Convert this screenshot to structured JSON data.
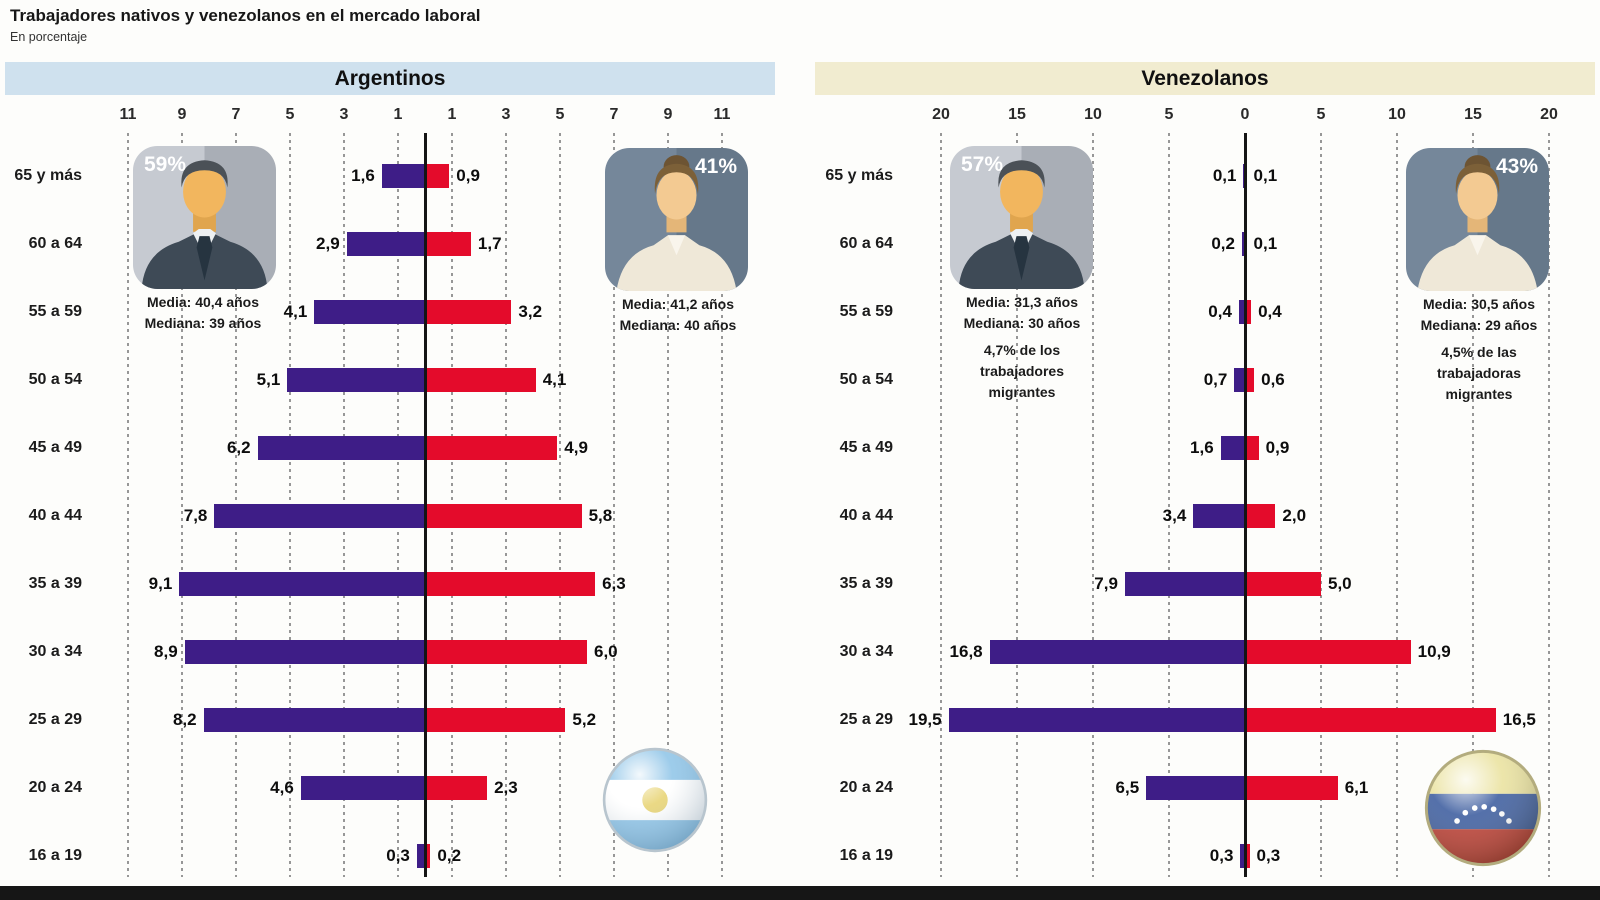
{
  "page": {
    "title": "Trabajadores nativos y venezolanos en el mercado laboral",
    "subtitle": "En porcentaje"
  },
  "colors": {
    "male_bar": "#3e1d87",
    "female_bar": "#e40b2b",
    "argentinos_band": "#cfe1ee",
    "venezolanos_band": "#f1ecd0",
    "axis_line": "#151515",
    "gridline": "#979797",
    "footer_bar": "#161616"
  },
  "icons": {
    "male_avatar": "male-avatar-icon",
    "female_avatar": "female-avatar-icon",
    "argentina_flag": "argentina-flag-icon",
    "venezuela_flag": "venezuela-flag-icon"
  },
  "chart_data": [
    {
      "type": "bar",
      "variant": "population-pyramid",
      "title": "Argentinos",
      "unit": "%",
      "grid": true,
      "legend_position": "none",
      "categories": [
        "65 y más",
        "60 a 64",
        "55 a 59",
        "50 a 54",
        "45 a 49",
        "40 a 44",
        "35 a 39",
        "30 a 34",
        "25 a 29",
        "20 a 24",
        "16 a 19"
      ],
      "series": [
        {
          "name": "Hombres (izquierda)",
          "color": "#3e1d87",
          "values": [
            1.6,
            2.9,
            4.1,
            5.1,
            6.2,
            7.8,
            9.1,
            8.9,
            8.2,
            4.6,
            0.3
          ]
        },
        {
          "name": "Mujeres (derecha)",
          "color": "#e40b2b",
          "values": [
            0.9,
            1.7,
            3.2,
            4.1,
            4.9,
            5.8,
            6.3,
            6.0,
            5.2,
            2.3,
            0.2
          ]
        }
      ],
      "axis_ticks": [
        -11,
        -9,
        -7,
        -5,
        -3,
        -1,
        1,
        3,
        5,
        7,
        9,
        11
      ],
      "xlim": [
        -11.6,
        11.6
      ],
      "annotations": {
        "male": {
          "pct": "59%",
          "lines": [
            "Media: 40,4 años",
            "Mediana: 39 años"
          ],
          "extra_lines": []
        },
        "female": {
          "pct": "41%",
          "lines": [
            "Media: 41,2 años",
            "Mediana: 40 años"
          ],
          "extra_lines": []
        }
      },
      "flag_icon": "argentina-flag"
    },
    {
      "type": "bar",
      "variant": "population-pyramid",
      "title": "Venezolanos",
      "unit": "%",
      "grid": true,
      "legend_position": "none",
      "categories": [
        "65 y más",
        "60 a 64",
        "55 a 59",
        "50 a 54",
        "45 a 49",
        "40 a 44",
        "35 a 39",
        "30 a 34",
        "25 a 29",
        "20 a 24",
        "16 a 19"
      ],
      "series": [
        {
          "name": "Hombres (izquierda)",
          "color": "#3e1d87",
          "values": [
            0.1,
            0.2,
            0.4,
            0.7,
            1.6,
            3.4,
            7.9,
            16.8,
            19.5,
            6.5,
            0.3
          ]
        },
        {
          "name": "Mujeres (derecha)",
          "color": "#e40b2b",
          "values": [
            0.1,
            0.1,
            0.4,
            0.6,
            0.9,
            2.0,
            5.0,
            10.9,
            16.5,
            6.1,
            0.3
          ]
        }
      ],
      "axis_ticks": [
        -20,
        -15,
        -10,
        -5,
        0,
        5,
        10,
        15,
        20
      ],
      "xlim": [
        -23,
        23
      ],
      "annotations": {
        "male": {
          "pct": "57%",
          "lines": [
            "Media: 31,3 años",
            "Mediana: 30 años"
          ],
          "extra_lines": [
            "4,7% de los",
            "trabajadores",
            "migrantes"
          ]
        },
        "female": {
          "pct": "43%",
          "lines": [
            "Media: 30,5 años",
            "Mediana: 29 años"
          ],
          "extra_lines": [
            "4,5% de las",
            "trabajadoras",
            "migrantes"
          ]
        }
      },
      "flag_icon": "venezuela-flag"
    }
  ]
}
